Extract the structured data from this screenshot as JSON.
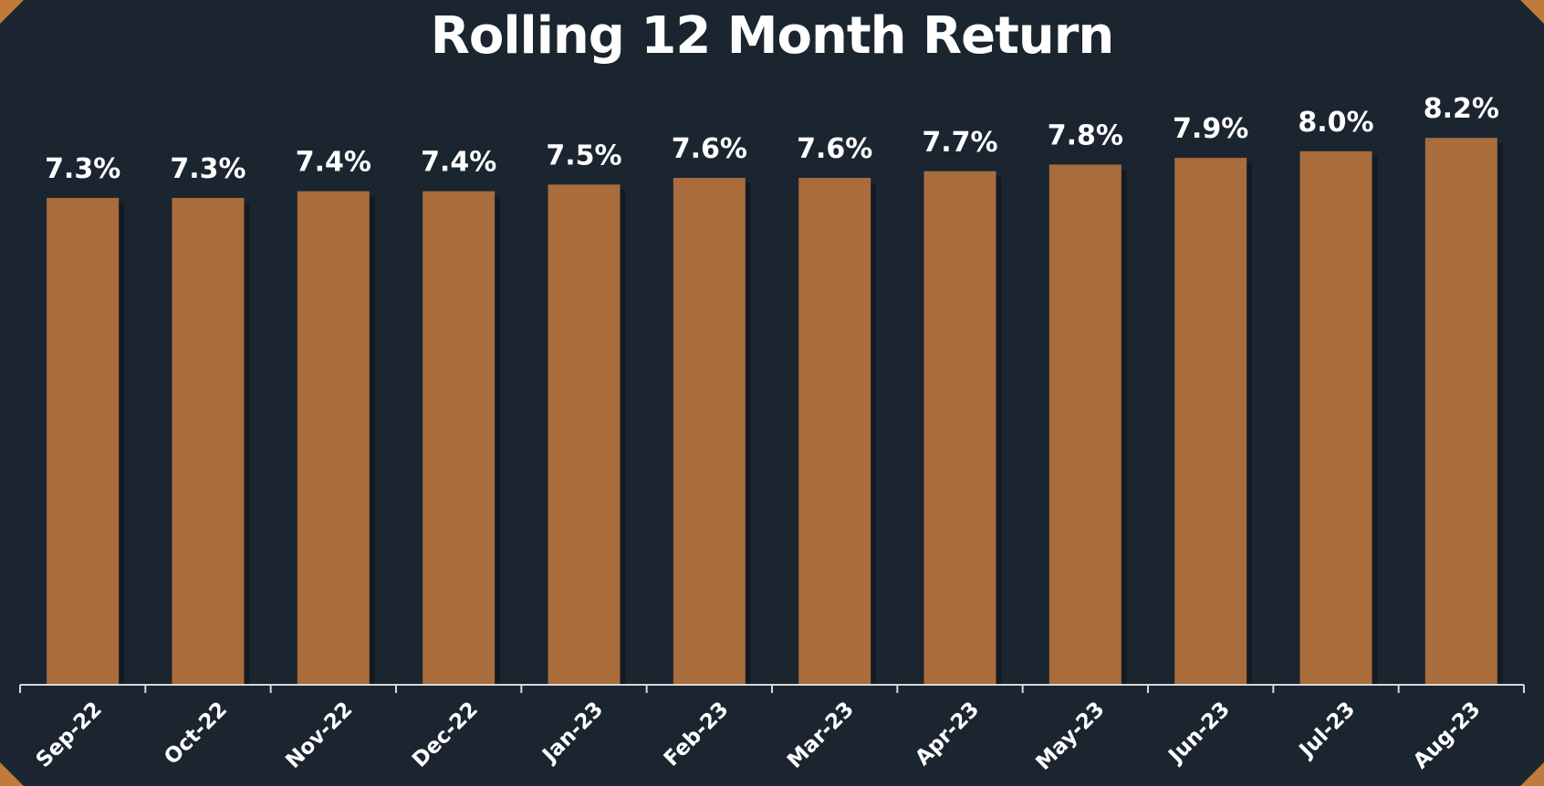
{
  "chart_data": {
    "type": "bar",
    "title": "Rolling 12 Month Return",
    "categories": [
      "Sep-22",
      "Oct-22",
      "Nov-22",
      "Dec-22",
      "Jan-23",
      "Feb-23",
      "Mar-23",
      "Apr-23",
      "May-23",
      "Jun-23",
      "Jul-23",
      "Aug-23"
    ],
    "values": [
      7.3,
      7.3,
      7.4,
      7.4,
      7.5,
      7.6,
      7.6,
      7.7,
      7.8,
      7.9,
      8.0,
      8.2
    ],
    "data_labels": [
      "7.3%",
      "7.3%",
      "7.4%",
      "7.4%",
      "7.5%",
      "7.6%",
      "7.6%",
      "7.7%",
      "7.8%",
      "7.9%",
      "8.0%",
      "8.2%"
    ],
    "xlabel": "",
    "ylabel": "",
    "ylim": [
      0,
      8.9
    ],
    "grid": false,
    "legend": "none",
    "colors": {
      "bar": "#a86c3d",
      "background": "#1b2530",
      "text": "#ffffff",
      "axis": "#d8d8d8",
      "accent": "#c07a3c"
    }
  }
}
